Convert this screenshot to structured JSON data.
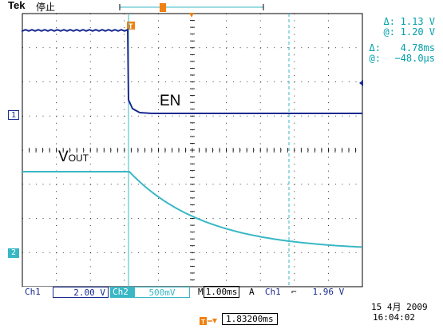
{
  "header": {
    "brand": "Tek",
    "run_state": "停止"
  },
  "cursor_readout": {
    "delta_v_label": "Δ:",
    "delta_v": "1.13 V",
    "at_v_label": "@:",
    "at_v": "1.20 V",
    "delta_t_label": "Δ:",
    "delta_t": "4.78ms",
    "at_t_label": "@:",
    "at_t": "−48.0µs"
  },
  "channels": {
    "ch1_tag": "Ch1",
    "ch1_scale": "2.00 V",
    "ch2_tag": "Ch2",
    "ch2_scale": "500mV",
    "ch1_marker": "1",
    "ch2_marker": "2"
  },
  "timebase": {
    "label": "M",
    "value": "1.00ms"
  },
  "trigger": {
    "mode": "A",
    "source": "Ch1",
    "slope_symbol": "⌐",
    "level": "1.96 V",
    "position": "1.83200ms",
    "trigger_marker": "T"
  },
  "datetime": {
    "date": "15 4月  2009",
    "time": "16:04:02"
  },
  "signals": {
    "en_label": "EN",
    "vout_label_main": "V",
    "vout_label_sub": "OUT"
  },
  "colors": {
    "ch1": "#1a2b8f",
    "ch2": "#39b7c5",
    "grid": "#000000",
    "trigger": "#f08010"
  }
}
